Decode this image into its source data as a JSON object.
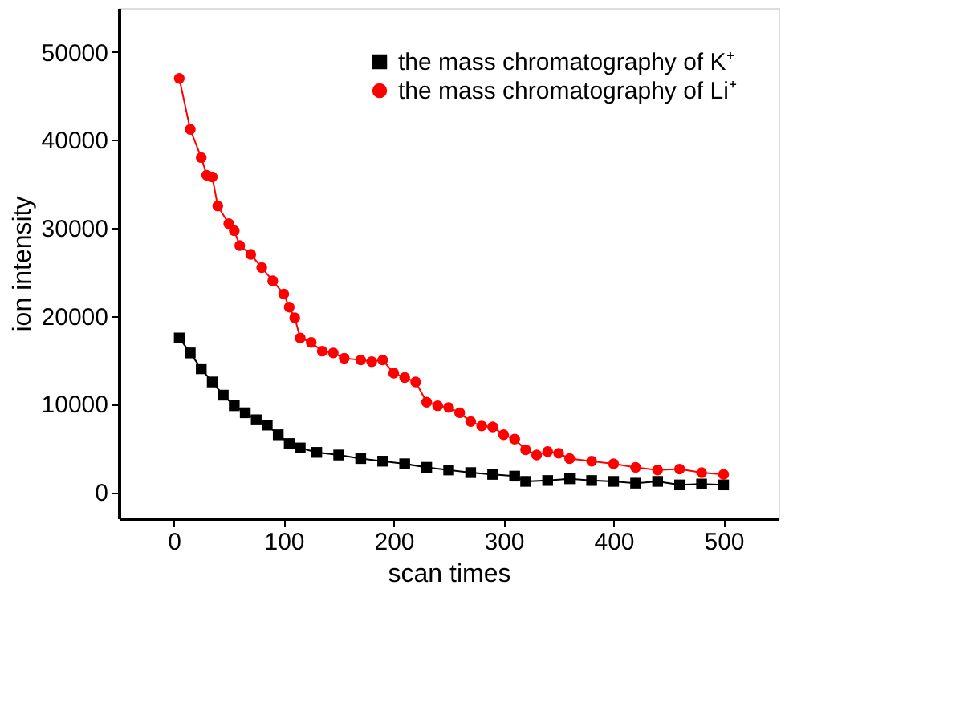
{
  "chart_data": {
    "type": "line",
    "xlabel": "scan times",
    "ylabel": "ion  intensity",
    "xlim": [
      -50,
      550
    ],
    "ylim": [
      -3000,
      55000
    ],
    "xticks": [
      0,
      100,
      200,
      300,
      400,
      500
    ],
    "yticks": [
      0,
      10000,
      20000,
      30000,
      40000,
      50000
    ],
    "grid": false,
    "legend": "top right",
    "line_style": "solid",
    "series": [
      {
        "name": "the mass chromatography of K⁺",
        "color": "#000000",
        "marker": "square",
        "x": [
          5,
          15,
          25,
          35,
          45,
          55,
          65,
          75,
          85,
          95,
          105,
          115,
          130,
          150,
          170,
          190,
          210,
          230,
          250,
          270,
          290,
          310,
          320,
          340,
          360,
          380,
          400,
          420,
          440,
          460,
          480,
          500
        ],
        "values": [
          17500,
          15800,
          14000,
          12500,
          11000,
          9800,
          9000,
          8200,
          7600,
          6500,
          5500,
          5000,
          4500,
          4200,
          3800,
          3500,
          3200,
          2800,
          2500,
          2200,
          2000,
          1800,
          1200,
          1300,
          1500,
          1300,
          1200,
          1000,
          1200,
          800,
          900,
          800
        ]
      },
      {
        "name": "the mass chromatography of Li⁺",
        "color": "#ff0000",
        "marker": "circle",
        "x": [
          5,
          15,
          25,
          30,
          35,
          40,
          50,
          55,
          60,
          70,
          80,
          90,
          100,
          105,
          110,
          115,
          125,
          135,
          145,
          155,
          170,
          180,
          190,
          200,
          210,
          220,
          230,
          240,
          250,
          260,
          270,
          280,
          290,
          300,
          310,
          320,
          330,
          340,
          350,
          360,
          380,
          400,
          420,
          440,
          460,
          480,
          500
        ],
        "values": [
          47000,
          41200,
          38000,
          36000,
          35800,
          32500,
          30500,
          29700,
          28000,
          27000,
          25500,
          24000,
          22500,
          21000,
          19800,
          17500,
          17000,
          16000,
          15800,
          15200,
          15000,
          14800,
          15000,
          13500,
          13000,
          12500,
          10200,
          9800,
          9600,
          9000,
          8000,
          7500,
          7400,
          6500,
          6000,
          4800,
          4200,
          4600,
          4400,
          3800,
          3500,
          3200,
          2800,
          2500,
          2600,
          2200,
          2000
        ]
      }
    ]
  }
}
